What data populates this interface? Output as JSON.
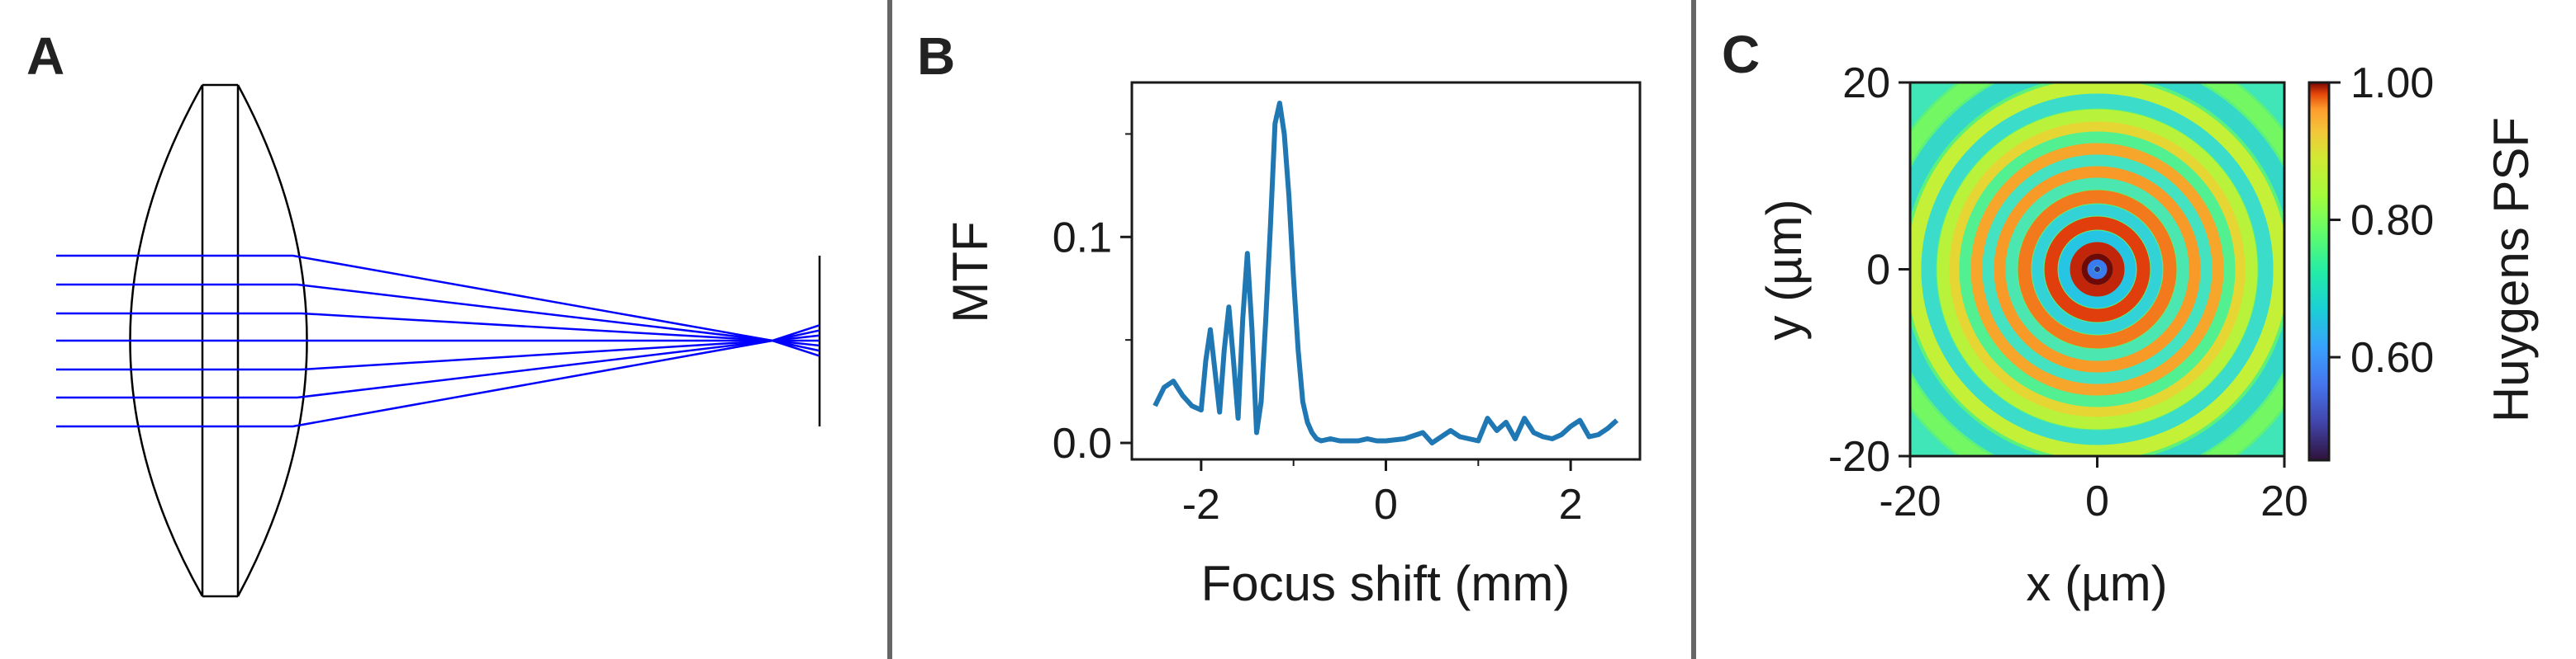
{
  "panels": {
    "a": {
      "letter": "A",
      "ray_colour": "#0000ff"
    },
    "b": {
      "letter": "B"
    },
    "c": {
      "letter": "C"
    }
  },
  "colours": {
    "line": "#1f77b4",
    "divider": "#666666",
    "axes": "#1a1a1a"
  },
  "chart_data": [
    {
      "type": "line",
      "panel": "B",
      "xlabel": "Focus shift (mm)",
      "ylabel": "MTF",
      "xlim": [
        -2.75,
        2.75
      ],
      "ylim": [
        -0.008,
        0.175
      ],
      "xticks": [
        -2,
        0,
        2
      ],
      "xtick_labels": [
        "-2",
        "0",
        "2"
      ],
      "yticks": [
        0.0,
        0.1
      ],
      "ytick_labels": [
        "0.0",
        "0.1"
      ],
      "series": [
        {
          "x": [
            -2.5,
            -2.4,
            -2.3,
            -2.2,
            -2.1,
            -2.0,
            -1.95,
            -1.9,
            -1.85,
            -1.8,
            -1.75,
            -1.7,
            -1.65,
            -1.6,
            -1.55,
            -1.5,
            -1.45,
            -1.4,
            -1.35,
            -1.3,
            -1.25,
            -1.2,
            -1.15,
            -1.1,
            -1.05,
            -1.0,
            -0.95,
            -0.9,
            -0.85,
            -0.8,
            -0.75,
            -0.7,
            -0.6,
            -0.5,
            -0.4,
            -0.3,
            -0.2,
            -0.1,
            0.0,
            0.2,
            0.4,
            0.5,
            0.7,
            0.8,
            0.9,
            1.0,
            1.1,
            1.2,
            1.3,
            1.4,
            1.5,
            1.6,
            1.7,
            1.8,
            1.9,
            2.0,
            2.1,
            2.2,
            2.3,
            2.4,
            2.5
          ],
          "y": [
            0.018,
            0.027,
            0.03,
            0.023,
            0.018,
            0.016,
            0.04,
            0.055,
            0.035,
            0.015,
            0.045,
            0.066,
            0.04,
            0.012,
            0.06,
            0.092,
            0.055,
            0.005,
            0.02,
            0.06,
            0.105,
            0.155,
            0.165,
            0.15,
            0.12,
            0.08,
            0.045,
            0.02,
            0.01,
            0.005,
            0.002,
            0.001,
            0.002,
            0.001,
            0.001,
            0.001,
            0.002,
            0.001,
            0.001,
            0.002,
            0.005,
            0.0,
            0.006,
            0.003,
            0.002,
            0.001,
            0.012,
            0.006,
            0.01,
            0.002,
            0.012,
            0.005,
            0.003,
            0.002,
            0.004,
            0.008,
            0.011,
            0.003,
            0.004,
            0.007,
            0.011
          ],
          "x_offset_note": ""
        }
      ],
      "grid": false
    },
    {
      "type": "heatmap",
      "panel": "C",
      "xlabel": "x (µm)",
      "ylabel": "y (µm)",
      "xlim": [
        -20,
        20
      ],
      "ylim": [
        -20,
        20
      ],
      "xticks": [
        -20,
        0,
        20
      ],
      "xtick_labels": [
        "-20",
        "0",
        "20"
      ],
      "yticks": [
        -20,
        0,
        20
      ],
      "ytick_labels": [
        "-20",
        "0",
        "20"
      ],
      "colorbar": {
        "label": "Huygens PSF",
        "range": [
          0.45,
          1.0
        ],
        "ticks": [
          0.6,
          0.8,
          1.0
        ],
        "tick_labels": [
          "0.60",
          "0.80",
          "1.00"
        ],
        "colormap": "turbo"
      },
      "pattern": "concentric rings centred at (0, 0)"
    }
  ]
}
